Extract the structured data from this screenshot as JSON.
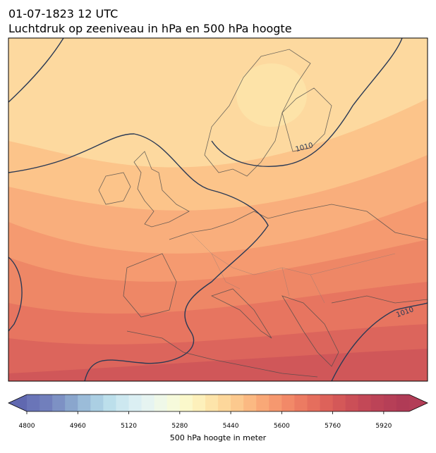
{
  "title": "01-07-1823 12 UTC",
  "subtitle": "Luchtdruk op zeeniveau in hPa en 500 hPa hoogte",
  "contour_labels": [
    "1010",
    "1010"
  ],
  "colorbar": {
    "label": "500 hPa hoogte in meter",
    "range": [
      4800,
      6000
    ],
    "ticks": [
      4800,
      4960,
      5120,
      5280,
      5440,
      5600,
      5760,
      5920
    ],
    "under_color": "#6068b0",
    "over_color": "#b33d57",
    "colors": [
      "#6a75b8",
      "#717fbc",
      "#7d91c4",
      "#8aa6cd",
      "#9bbcd9",
      "#abcfe3",
      "#bcdfeb",
      "#cde8f0",
      "#dbeff3",
      "#e6f4f1",
      "#eff8e8",
      "#f6fadb",
      "#fbf8cb",
      "#fdf0bb",
      "#fde4aa",
      "#fdd79b",
      "#fcc98e",
      "#fbb982",
      "#f9a877",
      "#f6986f",
      "#f28968",
      "#ec7b62",
      "#e56e5d",
      "#dd625a",
      "#d45858",
      "#cb4f57",
      "#c34857",
      "#bc4357",
      "#b63f57",
      "#b03b56"
    ]
  }
}
